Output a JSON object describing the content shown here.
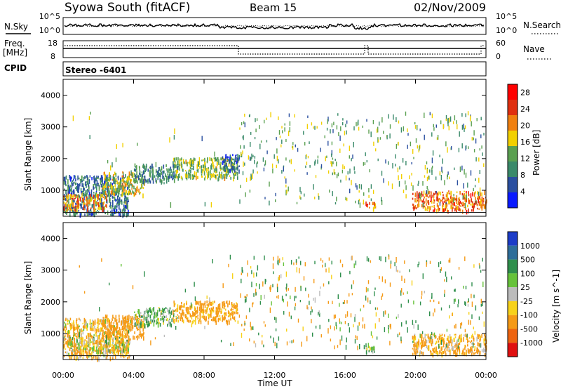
{
  "header": {
    "station": "Syowa South (fitACF)",
    "beam": "Beam 15",
    "date": "02/Nov/2009"
  },
  "top_panel": {
    "left_label": "N.Sky",
    "left_ticks": [
      "10^5",
      "10^0"
    ],
    "right_ticks": [
      "10^5",
      "10^0"
    ],
    "right_label": "N.Search"
  },
  "freq_panel": {
    "left_label_line1": "Freq.",
    "left_label_line2": "[MHz]",
    "left_ticks": [
      "18",
      "8"
    ],
    "right_ticks": [
      "60",
      "0"
    ],
    "right_label": "Nave"
  },
  "cpid": {
    "label": "CPID",
    "value": "Stereo -6401"
  },
  "chart_data": [
    {
      "type": "heatmap",
      "name": "power",
      "ylabel": "Slant Range [km]",
      "xlabel": "",
      "x_ticks": [
        "00:00",
        "04:00",
        "08:00",
        "12:00",
        "16:00",
        "20:00",
        "00:00"
      ],
      "y_ticks": [
        1000,
        2000,
        3000,
        4000
      ],
      "ylim": [
        180,
        4500
      ],
      "xlim_hours": [
        0,
        24
      ],
      "colorbar": {
        "label": "Power [dB]",
        "ticks": [
          4,
          8,
          12,
          16,
          20,
          24,
          28
        ],
        "range": [
          0,
          30
        ],
        "colors": [
          "#0a1aff",
          "#2a4fa0",
          "#3a8a6a",
          "#5aa050",
          "#f2d000",
          "#f08010",
          "#e03010",
          "#ff0000"
        ]
      },
      "echo_regions": [
        {
          "t0": 0.0,
          "t1": 3.7,
          "r0": 250,
          "r1": 1500,
          "value": 8
        },
        {
          "t0": 0.0,
          "t1": 2.5,
          "r0": 400,
          "r1": 900,
          "value": 20
        },
        {
          "t0": 2.2,
          "t1": 4.6,
          "r0": 900,
          "r1": 1600,
          "value": 16
        },
        {
          "t0": 4.0,
          "t1": 6.3,
          "r0": 1300,
          "r1": 1850,
          "value": 10
        },
        {
          "t0": 6.2,
          "t1": 9.9,
          "r0": 1400,
          "r1": 2050,
          "value": 14
        },
        {
          "t0": 9.0,
          "t1": 10.0,
          "r0": 1650,
          "r1": 2150,
          "value": 6
        },
        {
          "t0": 17.0,
          "t1": 17.7,
          "r0": 450,
          "r1": 650,
          "value": 22
        },
        {
          "t0": 19.8,
          "t1": 24.0,
          "r0": 380,
          "r1": 1000,
          "value": 22
        }
      ]
    },
    {
      "type": "heatmap",
      "name": "velocity",
      "ylabel": "Slant Range [km]",
      "xlabel": "Time UT",
      "x_ticks": [
        "00:00",
        "04:00",
        "08:00",
        "12:00",
        "16:00",
        "20:00",
        "00:00"
      ],
      "y_ticks": [
        1000,
        2000,
        3000,
        4000
      ],
      "ylim": [
        180,
        4500
      ],
      "xlim_hours": [
        0,
        24
      ],
      "colorbar": {
        "label": "Velocity [m s^-1]",
        "ticks": [
          "1000",
          "500",
          "100",
          "25",
          "-25",
          "-100",
          "-500",
          "-1000"
        ],
        "colors": [
          "#1c3cc8",
          "#2e6e9a",
          "#2f8f4c",
          "#66c23a",
          "#bcbcbc",
          "#f7d21a",
          "#f59a16",
          "#ee6410",
          "#e01010"
        ]
      },
      "echo_regions": [
        {
          "t0": 0.0,
          "t1": 3.8,
          "r0": 250,
          "r1": 1500,
          "value": -100
        },
        {
          "t0": 0.3,
          "t1": 3.8,
          "r0": 450,
          "r1": 900,
          "value": -25
        },
        {
          "t0": 2.2,
          "t1": 4.6,
          "r0": 900,
          "r1": 1600,
          "value": -300
        },
        {
          "t0": 4.0,
          "t1": 6.3,
          "r0": 1300,
          "r1": 1850,
          "value": 100
        },
        {
          "t0": 6.2,
          "t1": 9.9,
          "r0": 1400,
          "r1": 2050,
          "value": -200
        },
        {
          "t0": 17.0,
          "t1": 17.7,
          "r0": 450,
          "r1": 650,
          "value": 80
        },
        {
          "t0": 19.8,
          "t1": 24.0,
          "r0": 380,
          "r1": 1000,
          "value": -150
        }
      ]
    }
  ]
}
